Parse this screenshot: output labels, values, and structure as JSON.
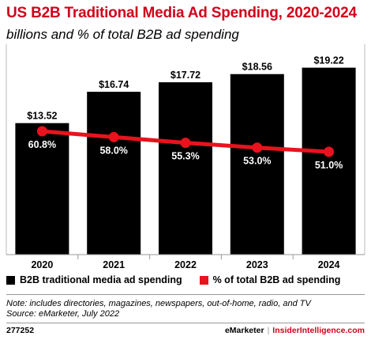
{
  "title": "US B2B Traditional Media Ad Spending, 2020-2024",
  "subtitle": "billions and % of total B2B ad spending",
  "chart_data": {
    "type": "bar",
    "categories": [
      "2020",
      "2021",
      "2022",
      "2023",
      "2024"
    ],
    "series": [
      {
        "name": "B2B traditional media ad spending",
        "type": "bar",
        "values": [
          13.52,
          16.74,
          17.72,
          18.56,
          19.22
        ],
        "labels": [
          "$13.52",
          "$16.74",
          "$17.72",
          "$18.56",
          "$19.22"
        ],
        "color": "#000000"
      },
      {
        "name": "% of total B2B ad spending",
        "type": "line",
        "values": [
          60.8,
          58.0,
          55.3,
          53.0,
          51.0
        ],
        "labels": [
          "60.8%",
          "58.0%",
          "55.3%",
          "53.0%",
          "51.0%"
        ],
        "color": "#e8131d"
      }
    ],
    "legend_position": "bottom-left"
  },
  "legend": {
    "bar_label": "B2B traditional media ad spending",
    "line_label": "% of total B2B ad spending"
  },
  "notes": {
    "note": "Note: includes directories, magazines, newspapers, out-of-home, radio, and TV",
    "source": "Source: eMarketer, July 2022"
  },
  "footer": {
    "id": "277252",
    "brand1": "eMarketer",
    "sep": "|",
    "brand2": "InsiderIntelligence.com"
  }
}
